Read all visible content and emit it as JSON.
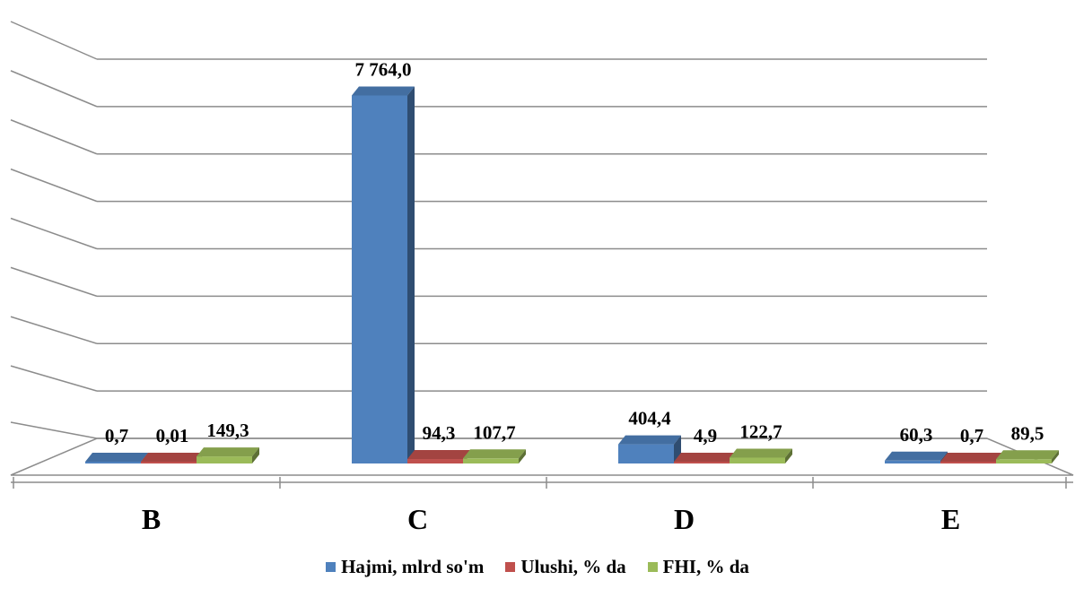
{
  "chart_data": {
    "type": "bar",
    "categories": [
      "B",
      "C",
      "D",
      "E"
    ],
    "series": [
      {
        "name": "Hajmi, mlrd so'm",
        "values": [
          0.7,
          7764.0,
          404.4,
          60.3
        ],
        "labels": [
          "0,7",
          "7 764,0",
          "404,4",
          "60,3"
        ]
      },
      {
        "name": "Ulushi, % da",
        "values": [
          0.01,
          94.3,
          4.9,
          0.7
        ],
        "labels": [
          "0,01",
          "94,3",
          "4,9",
          "0,7"
        ]
      },
      {
        "name": "FHI, % da",
        "values": [
          149.3,
          107.7,
          122.7,
          89.5
        ],
        "labels": [
          "149,3",
          "107,7",
          "122,7",
          "89,5"
        ]
      }
    ],
    "colors": [
      "#4F81BD",
      "#C0504D",
      "#9BBB59"
    ],
    "ylim": [
      0,
      8000
    ],
    "grid": true,
    "legend_position": "bottom"
  }
}
